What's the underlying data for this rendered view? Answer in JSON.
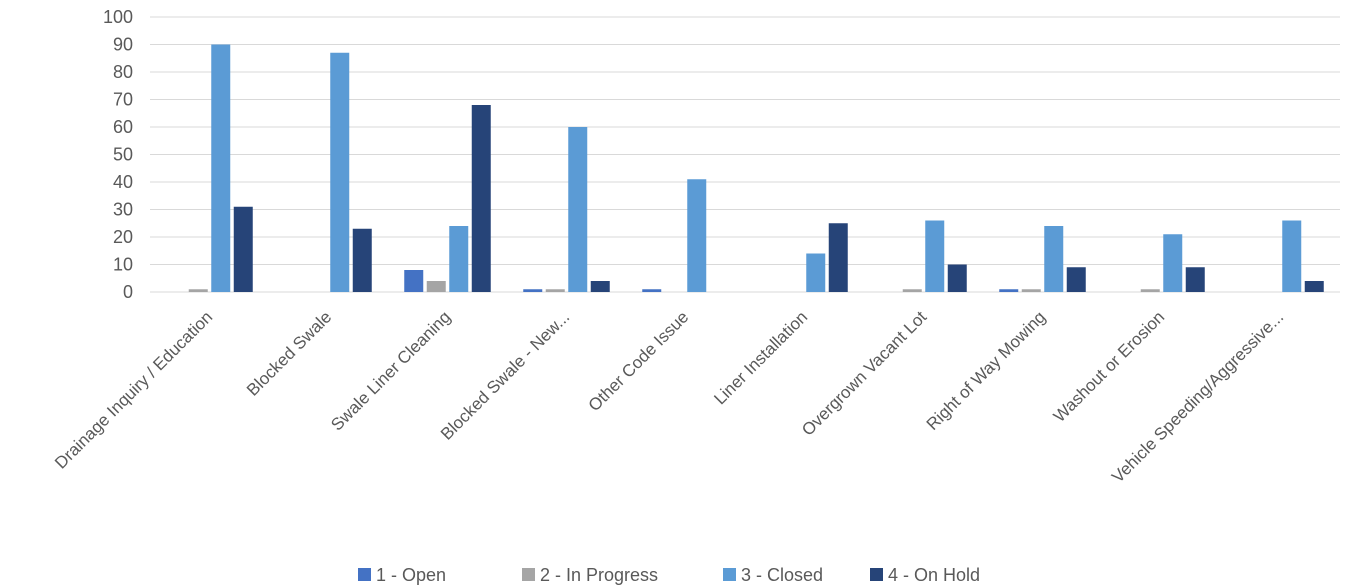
{
  "chart_data": {
    "type": "bar",
    "title": "",
    "xlabel": "",
    "ylabel": "",
    "ylim": [
      0,
      100
    ],
    "yticks": [
      0,
      10,
      20,
      30,
      40,
      50,
      60,
      70,
      80,
      90,
      100
    ],
    "grid": true,
    "legend_position": "bottom",
    "categories": [
      "Drainage Inquiry / Education",
      "Blocked Swale",
      "Swale Liner Cleaning",
      "Blocked Swale - New...",
      "Other Code Issue",
      "Liner Installation",
      "Overgrown Vacant Lot",
      "Right of Way Mowing",
      "Washout or Erosion",
      "Vehicle Speeding/Aggressive..."
    ],
    "series": [
      {
        "name": "1 - Open",
        "color": "#4472C4",
        "values": [
          0,
          0,
          8,
          1,
          1,
          0,
          0,
          1,
          0,
          0
        ]
      },
      {
        "name": "2 - In Progress",
        "color": "#A5A5A5",
        "values": [
          1,
          0,
          4,
          1,
          0,
          0,
          1,
          1,
          1,
          0
        ]
      },
      {
        "name": "3 - Closed",
        "color": "#5B9BD5",
        "values": [
          90,
          87,
          24,
          60,
          41,
          14,
          26,
          24,
          21,
          26
        ]
      },
      {
        "name": "4 - On Hold",
        "color": "#264478",
        "values": [
          31,
          23,
          68,
          4,
          0,
          25,
          10,
          9,
          9,
          4
        ]
      }
    ]
  }
}
